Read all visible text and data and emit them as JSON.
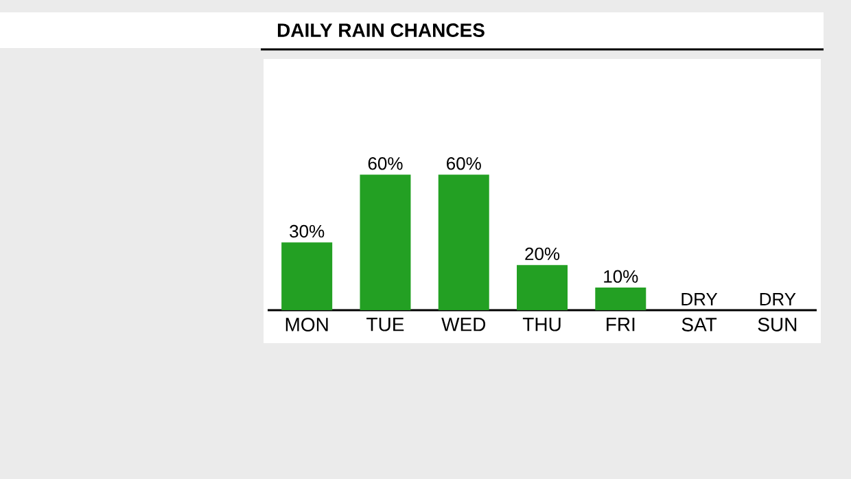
{
  "chart_data": {
    "type": "bar",
    "title": "DAILY RAIN CHANCES",
    "categories": [
      "MON",
      "TUE",
      "WED",
      "THU",
      "FRI",
      "SAT",
      "SUN"
    ],
    "values": [
      30,
      60,
      60,
      20,
      10,
      0,
      0
    ],
    "value_labels": [
      "30%",
      "60%",
      "60%",
      "20%",
      "10%",
      "DRY",
      "DRY"
    ],
    "color": "#23a023",
    "ylim": [
      0,
      110
    ]
  }
}
